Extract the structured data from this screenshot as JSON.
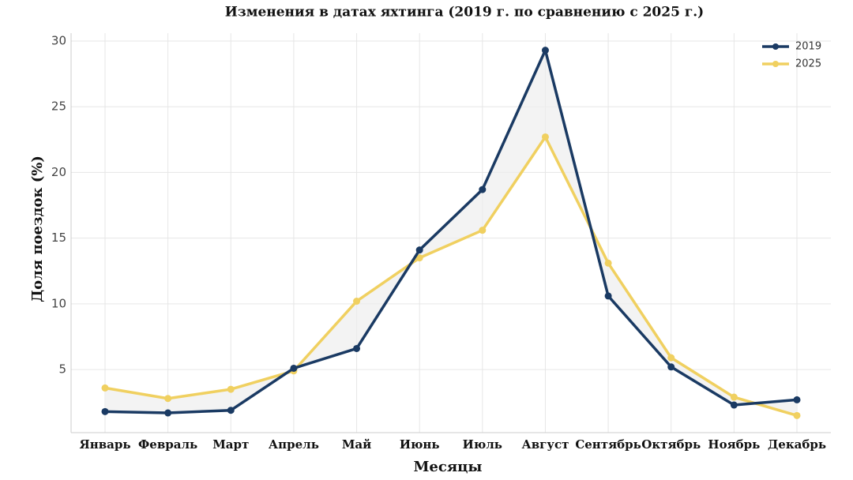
{
  "chart_data": {
    "type": "line",
    "title": "Изменения в датах яхтинга (2019 г. по сравнению с 2025 г.)",
    "x_label": "Месяцы",
    "y_label": "Доля поездок (%)",
    "categories": [
      "Январь",
      "Февраль",
      "Март",
      "Апрель",
      "Май",
      "Июнь",
      "Июль",
      "Август",
      "Сентябрь",
      "Октябрь",
      "Ноябрь",
      "Декабрь"
    ],
    "series": [
      {
        "name": "2019",
        "color": "#1a3a63",
        "values": [
          1.8,
          1.7,
          1.9,
          5.1,
          6.6,
          14.1,
          18.7,
          29.3,
          10.6,
          5.2,
          2.3,
          2.7
        ]
      },
      {
        "name": "2025",
        "color": "#f0d060",
        "values": [
          3.6,
          2.8,
          3.5,
          4.9,
          10.2,
          13.5,
          15.6,
          22.7,
          13.1,
          5.9,
          2.9,
          1.5
        ]
      }
    ],
    "ylim": [
      0.2,
      30.6
    ],
    "yticks": [
      5,
      10,
      15,
      20,
      25,
      30
    ],
    "grid": true,
    "legend": "upper right",
    "fill_between": "#eeeeee"
  }
}
